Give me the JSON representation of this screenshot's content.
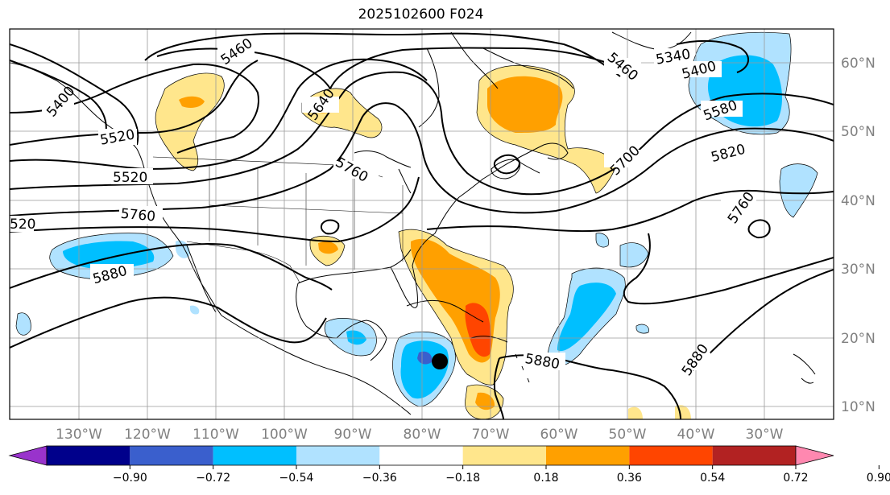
{
  "title": "2025102600 F024",
  "lon_labels": [
    "130°W",
    "120°W",
    "110°W",
    "100°W",
    "90°W",
    "80°W",
    "70°W",
    "60°W",
    "50°W",
    "40°W",
    "30°W"
  ],
  "lat_labels": [
    "60°N",
    "50°N",
    "40°N",
    "30°N",
    "20°N",
    "10°N"
  ],
  "contour_labels": [
    "5460",
    "5520",
    "5460",
    "5340",
    "5400",
    "5580",
    "5640",
    "5400",
    "5520",
    "5760",
    "5700",
    "5820",
    "5760",
    "520",
    "5760",
    "5880",
    "5880",
    "5880"
  ],
  "colorbar": {
    "ticks": [
      "−0.90",
      "−0.72",
      "−0.54",
      "−0.36",
      "−0.18",
      "0.18",
      "0.36",
      "0.54",
      "0.72",
      "0.90"
    ],
    "colors": [
      "#9933cc",
      "#00008b",
      "#3a5fcd",
      "#00bfff",
      "#b0e2ff",
      "#ffffff",
      "#ffe68c",
      "#ffa000",
      "#ff4500",
      "#b22222",
      "#ff88b0"
    ]
  },
  "colors": {
    "lightblue": "#b0e2ff",
    "blue": "#00bfff",
    "midblue": "#3a5fcd",
    "yellow": "#ffe68c",
    "orange": "#ffa000",
    "red": "#ff4500"
  }
}
